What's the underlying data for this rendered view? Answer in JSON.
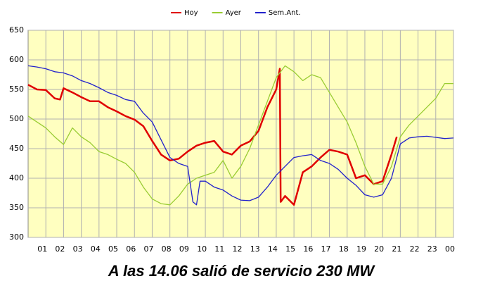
{
  "chart_data": {
    "type": "line",
    "caption": "A las 14.06 salió de servicio 230 MW",
    "legend": "top",
    "grid": true,
    "xlim": [
      0,
      24
    ],
    "xticks": [
      {
        "value": 1,
        "label": "01"
      },
      {
        "value": 2,
        "label": "02"
      },
      {
        "value": 3,
        "label": "03"
      },
      {
        "value": 4,
        "label": "04"
      },
      {
        "value": 5,
        "label": "05"
      },
      {
        "value": 6,
        "label": "06"
      },
      {
        "value": 7,
        "label": "07"
      },
      {
        "value": 8,
        "label": "08"
      },
      {
        "value": 9,
        "label": "09"
      },
      {
        "value": 10,
        "label": "10"
      },
      {
        "value": 11,
        "label": "11"
      },
      {
        "value": 12,
        "label": "12"
      },
      {
        "value": 13,
        "label": "13"
      },
      {
        "value": 14,
        "label": "14"
      },
      {
        "value": 15,
        "label": "15"
      },
      {
        "value": 16,
        "label": "16"
      },
      {
        "value": 17,
        "label": "17"
      },
      {
        "value": 18,
        "label": "18"
      },
      {
        "value": 19,
        "label": "19"
      },
      {
        "value": 20,
        "label": "20"
      },
      {
        "value": 21,
        "label": "21"
      },
      {
        "value": 22,
        "label": "22"
      },
      {
        "value": 23,
        "label": "23"
      },
      {
        "value": 24,
        "label": "00"
      }
    ],
    "ylim": [
      300,
      650
    ],
    "yticks": [
      300,
      350,
      400,
      450,
      500,
      550,
      600,
      650
    ],
    "series": [
      {
        "name": "Hoy",
        "color": "#e00000",
        "x": [
          0,
          0.5,
          1,
          1.5,
          1.8,
          2,
          2.5,
          3,
          3.5,
          4,
          4.5,
          5,
          5.5,
          6,
          6.5,
          7,
          7.5,
          8,
          8.5,
          9,
          9.5,
          10,
          10.5,
          11,
          11.5,
          12,
          12.5,
          13,
          13.5,
          14,
          14.2,
          14.25,
          14.5,
          15,
          15.5,
          16,
          16.5,
          17,
          17.5,
          18,
          18.5,
          19,
          19.5,
          20,
          20.5,
          20.8
        ],
        "values": [
          558,
          550,
          549,
          535,
          533,
          552,
          545,
          537,
          530,
          530,
          520,
          513,
          505,
          499,
          488,
          463,
          440,
          430,
          433,
          445,
          455,
          460,
          463,
          445,
          440,
          455,
          462,
          480,
          520,
          550,
          585,
          360,
          370,
          355,
          410,
          420,
          435,
          448,
          445,
          440,
          400,
          405,
          390,
          395,
          440,
          470
        ]
      },
      {
        "name": "Ayer",
        "color": "#99cc33",
        "x": [
          0,
          0.5,
          1,
          1.5,
          2,
          2.5,
          3,
          3.5,
          4,
          4.5,
          5,
          5.5,
          6,
          6.5,
          7,
          7.5,
          8,
          8.5,
          9,
          9.5,
          10,
          10.5,
          11,
          11.5,
          12,
          12.5,
          13,
          13.5,
          14,
          14.5,
          15,
          15.5,
          16,
          16.5,
          17,
          17.5,
          18,
          18.5,
          19,
          19.5,
          20,
          20.5,
          21,
          21.5,
          22,
          22.5,
          23,
          23.5,
          24
        ],
        "values": [
          505,
          495,
          485,
          470,
          457,
          485,
          470,
          460,
          445,
          440,
          432,
          425,
          410,
          385,
          365,
          357,
          355,
          370,
          390,
          400,
          405,
          410,
          430,
          400,
          420,
          450,
          490,
          530,
          570,
          590,
          580,
          565,
          575,
          570,
          545,
          520,
          495,
          460,
          420,
          390,
          390,
          420,
          470,
          490,
          505,
          520,
          535,
          560,
          560
        ]
      },
      {
        "name": "Sem.Ant.",
        "color": "#2222cc",
        "x": [
          0,
          0.5,
          1,
          1.5,
          2,
          2.5,
          3,
          3.5,
          4,
          4.5,
          5,
          5.5,
          6,
          6.5,
          7,
          7.5,
          8,
          8.5,
          9,
          9.3,
          9.5,
          9.7,
          10,
          10.5,
          11,
          11.5,
          12,
          12.5,
          13,
          13.5,
          14,
          14.5,
          15,
          15.5,
          16,
          16.5,
          17,
          17.5,
          18,
          18.5,
          19,
          19.5,
          20,
          20.5,
          21,
          21.5,
          22,
          22.5,
          23,
          23.5,
          24
        ],
        "values": [
          590,
          588,
          585,
          580,
          578,
          573,
          565,
          560,
          553,
          545,
          540,
          533,
          530,
          510,
          495,
          465,
          435,
          425,
          420,
          360,
          355,
          395,
          395,
          385,
          380,
          370,
          363,
          362,
          368,
          385,
          405,
          420,
          435,
          438,
          440,
          430,
          425,
          415,
          400,
          388,
          372,
          368,
          372,
          400,
          458,
          468,
          470,
          471,
          469,
          467,
          468
        ]
      }
    ]
  }
}
